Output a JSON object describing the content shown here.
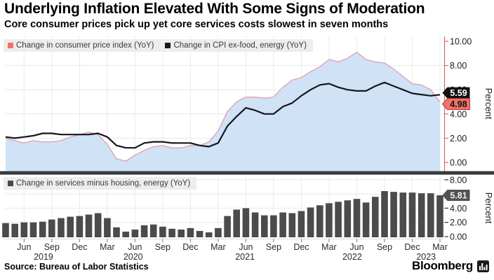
{
  "header": {
    "title": "Underlying Inflation Elevated With Some Signs of Moderation",
    "subtitle": "Core consumer prices pick up yet core services costs slowest in seven months"
  },
  "source_line": "Source: Bureau of Labor Statistics",
  "branding": {
    "name": "Bloomberg",
    "icon": "bar-chart-icon"
  },
  "colors": {
    "cpi_red": "#f3716c",
    "cpi_area_fill": "#cfe2f6",
    "cpi_outline_pink": "#e39dac",
    "core_line_black": "#16161e",
    "bars_gray": "#4b4b4b",
    "axis_red": "#d96a6a",
    "tick_text": "#1a1a1a",
    "xlabel_text": "#2b2b2b",
    "grid": "#e8e8e8",
    "grid_vertical": "#e7ebee",
    "separator": "#38383e",
    "tag_core_bg": "#121212",
    "tag_core_text": "#ffffff",
    "tag_cpi_bg": "#f3716c",
    "tag_cpi_border": "#a93a32",
    "tag_cpi_text": "#101010",
    "tag_services_bg": "#515156",
    "tag_services_text": "#f2f2f2",
    "legend_bg": "#ededed"
  },
  "months": [
    "Apr 2019",
    "May 2019",
    "Jun 2019",
    "Jul 2019",
    "Aug 2019",
    "Sep 2019",
    "Oct 2019",
    "Nov 2019",
    "Dec 2019",
    "Jan 2020",
    "Feb 2020",
    "Mar 2020",
    "Apr 2020",
    "May 2020",
    "Jun 2020",
    "Jul 2020",
    "Aug 2020",
    "Sep 2020",
    "Oct 2020",
    "Nov 2020",
    "Dec 2020",
    "Jan 2021",
    "Feb 2021",
    "Mar 2021",
    "Apr 2021",
    "May 2021",
    "Jun 2021",
    "Jul 2021",
    "Aug 2021",
    "Sep 2021",
    "Oct 2021",
    "Nov 2021",
    "Dec 2021",
    "Jan 2022",
    "Feb 2022",
    "Mar 2022",
    "Apr 2022",
    "May 2022",
    "Jun 2022",
    "Jul 2022",
    "Aug 2022",
    "Sep 2022",
    "Oct 2022",
    "Nov 2022",
    "Dec 2022",
    "Jan 2023",
    "Feb 2023",
    "Mar 2023"
  ],
  "xticks": [
    {
      "label": "Jun",
      "i": 2
    },
    {
      "label": "Sep",
      "i": 5
    },
    {
      "label": "Dec",
      "i": 8
    },
    {
      "label": "Mar",
      "i": 11
    },
    {
      "label": "Jun",
      "i": 14
    },
    {
      "label": "Sep",
      "i": 17
    },
    {
      "label": "Dec",
      "i": 20
    },
    {
      "label": "Mar",
      "i": 23
    },
    {
      "label": "Jun",
      "i": 26
    },
    {
      "label": "Sep",
      "i": 29
    },
    {
      "label": "Dec",
      "i": 32
    },
    {
      "label": "Mar",
      "i": 35
    },
    {
      "label": "Jun",
      "i": 38
    },
    {
      "label": "Sep",
      "i": 41
    },
    {
      "label": "Dec",
      "i": 44
    },
    {
      "label": "Mar",
      "i": 47
    }
  ],
  "year_labels": [
    {
      "label": "2019",
      "i": 4.1
    },
    {
      "label": "2020",
      "i": 13.8
    },
    {
      "label": "2021",
      "i": 25.9
    },
    {
      "label": "2022",
      "i": 37.5
    },
    {
      "label": "2023",
      "i": 45.5
    }
  ],
  "chart_data": [
    {
      "panel": "top",
      "type": "area",
      "ylabel": "Percent",
      "ylim": [
        0,
        10
      ],
      "yticks": [
        10,
        8,
        6,
        4,
        2,
        0
      ],
      "grid": true,
      "legend_position": "top-left",
      "series": [
        {
          "name": "Change in consumer price index (YoY)",
          "type": "area",
          "end_label": "4.98",
          "values": [
            2.0,
            1.8,
            1.6,
            1.8,
            1.7,
            1.7,
            1.8,
            2.1,
            2.3,
            2.5,
            2.3,
            1.5,
            0.3,
            0.1,
            0.6,
            1.0,
            1.3,
            1.4,
            1.2,
            1.2,
            1.4,
            1.4,
            1.7,
            2.6,
            4.2,
            5.0,
            5.4,
            5.4,
            5.3,
            5.4,
            6.2,
            6.8,
            7.0,
            7.5,
            7.9,
            8.5,
            8.3,
            8.6,
            9.1,
            8.5,
            8.3,
            8.2,
            7.7,
            7.1,
            6.5,
            6.4,
            6.0,
            4.98
          ]
        },
        {
          "name": "Change in CPI ex-food, energy (YoY)",
          "type": "line",
          "end_label": "5.59",
          "values": [
            2.1,
            2.0,
            2.1,
            2.2,
            2.4,
            2.4,
            2.3,
            2.3,
            2.3,
            2.3,
            2.4,
            2.1,
            1.4,
            1.2,
            1.2,
            1.6,
            1.7,
            1.7,
            1.6,
            1.6,
            1.6,
            1.4,
            1.3,
            1.6,
            3.0,
            3.8,
            4.5,
            4.3,
            4.0,
            4.0,
            4.6,
            4.9,
            5.5,
            6.0,
            6.4,
            6.5,
            6.2,
            6.0,
            5.9,
            5.9,
            6.3,
            6.6,
            6.3,
            6.0,
            5.7,
            5.6,
            5.5,
            5.59
          ]
        }
      ]
    },
    {
      "panel": "bottom",
      "type": "bar",
      "ylabel": "Percent",
      "ylim": [
        0,
        8
      ],
      "yticks": [
        8,
        6,
        4,
        2,
        0
      ],
      "grid": true,
      "legend_position": "top-left",
      "series": [
        {
          "name": "Change in services minus housing, energy (YoY)",
          "type": "bar",
          "end_label": "5.81",
          "values": [
            1.9,
            1.8,
            2.0,
            2.0,
            2.1,
            2.4,
            2.6,
            2.8,
            2.9,
            3.1,
            3.3,
            2.6,
            1.3,
            0.7,
            1.0,
            1.6,
            1.7,
            1.4,
            1.1,
            1.0,
            1.2,
            0.8,
            0.6,
            1.2,
            2.9,
            3.8,
            4.0,
            3.4,
            3.0,
            3.0,
            3.4,
            3.3,
            3.6,
            4.1,
            4.4,
            4.7,
            4.9,
            5.1,
            5.3,
            4.8,
            5.6,
            6.4,
            6.3,
            6.2,
            6.2,
            6.1,
            6.1,
            5.81
          ]
        }
      ]
    }
  ]
}
